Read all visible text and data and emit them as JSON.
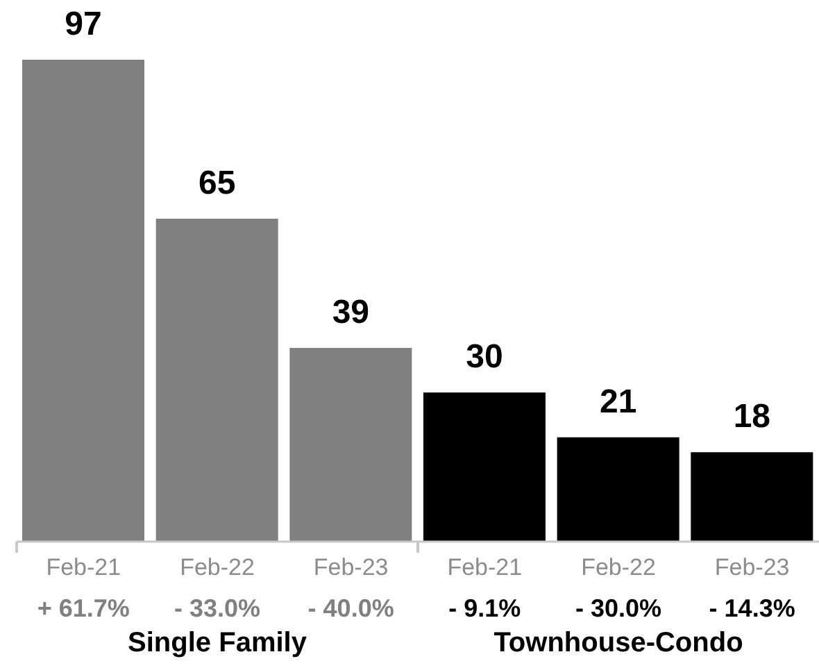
{
  "chart_data": {
    "type": "bar",
    "categories": [
      "Feb-21",
      "Feb-22",
      "Feb-23",
      "Feb-21",
      "Feb-22",
      "Feb-23"
    ],
    "values": [
      97,
      65,
      39,
      30,
      21,
      18
    ],
    "colors": [
      "#808080",
      "#808080",
      "#808080",
      "#000000",
      "#000000",
      "#000000"
    ],
    "data_labels": true,
    "tick_labels": "x",
    "annotations": [
      "+ 61.7%",
      "- 33.0%",
      "- 40.0%",
      "- 9.1%",
      "- 30.0%",
      "- 14.3%",
      "Single Family",
      "Townhouse-Condo"
    ]
  }
}
